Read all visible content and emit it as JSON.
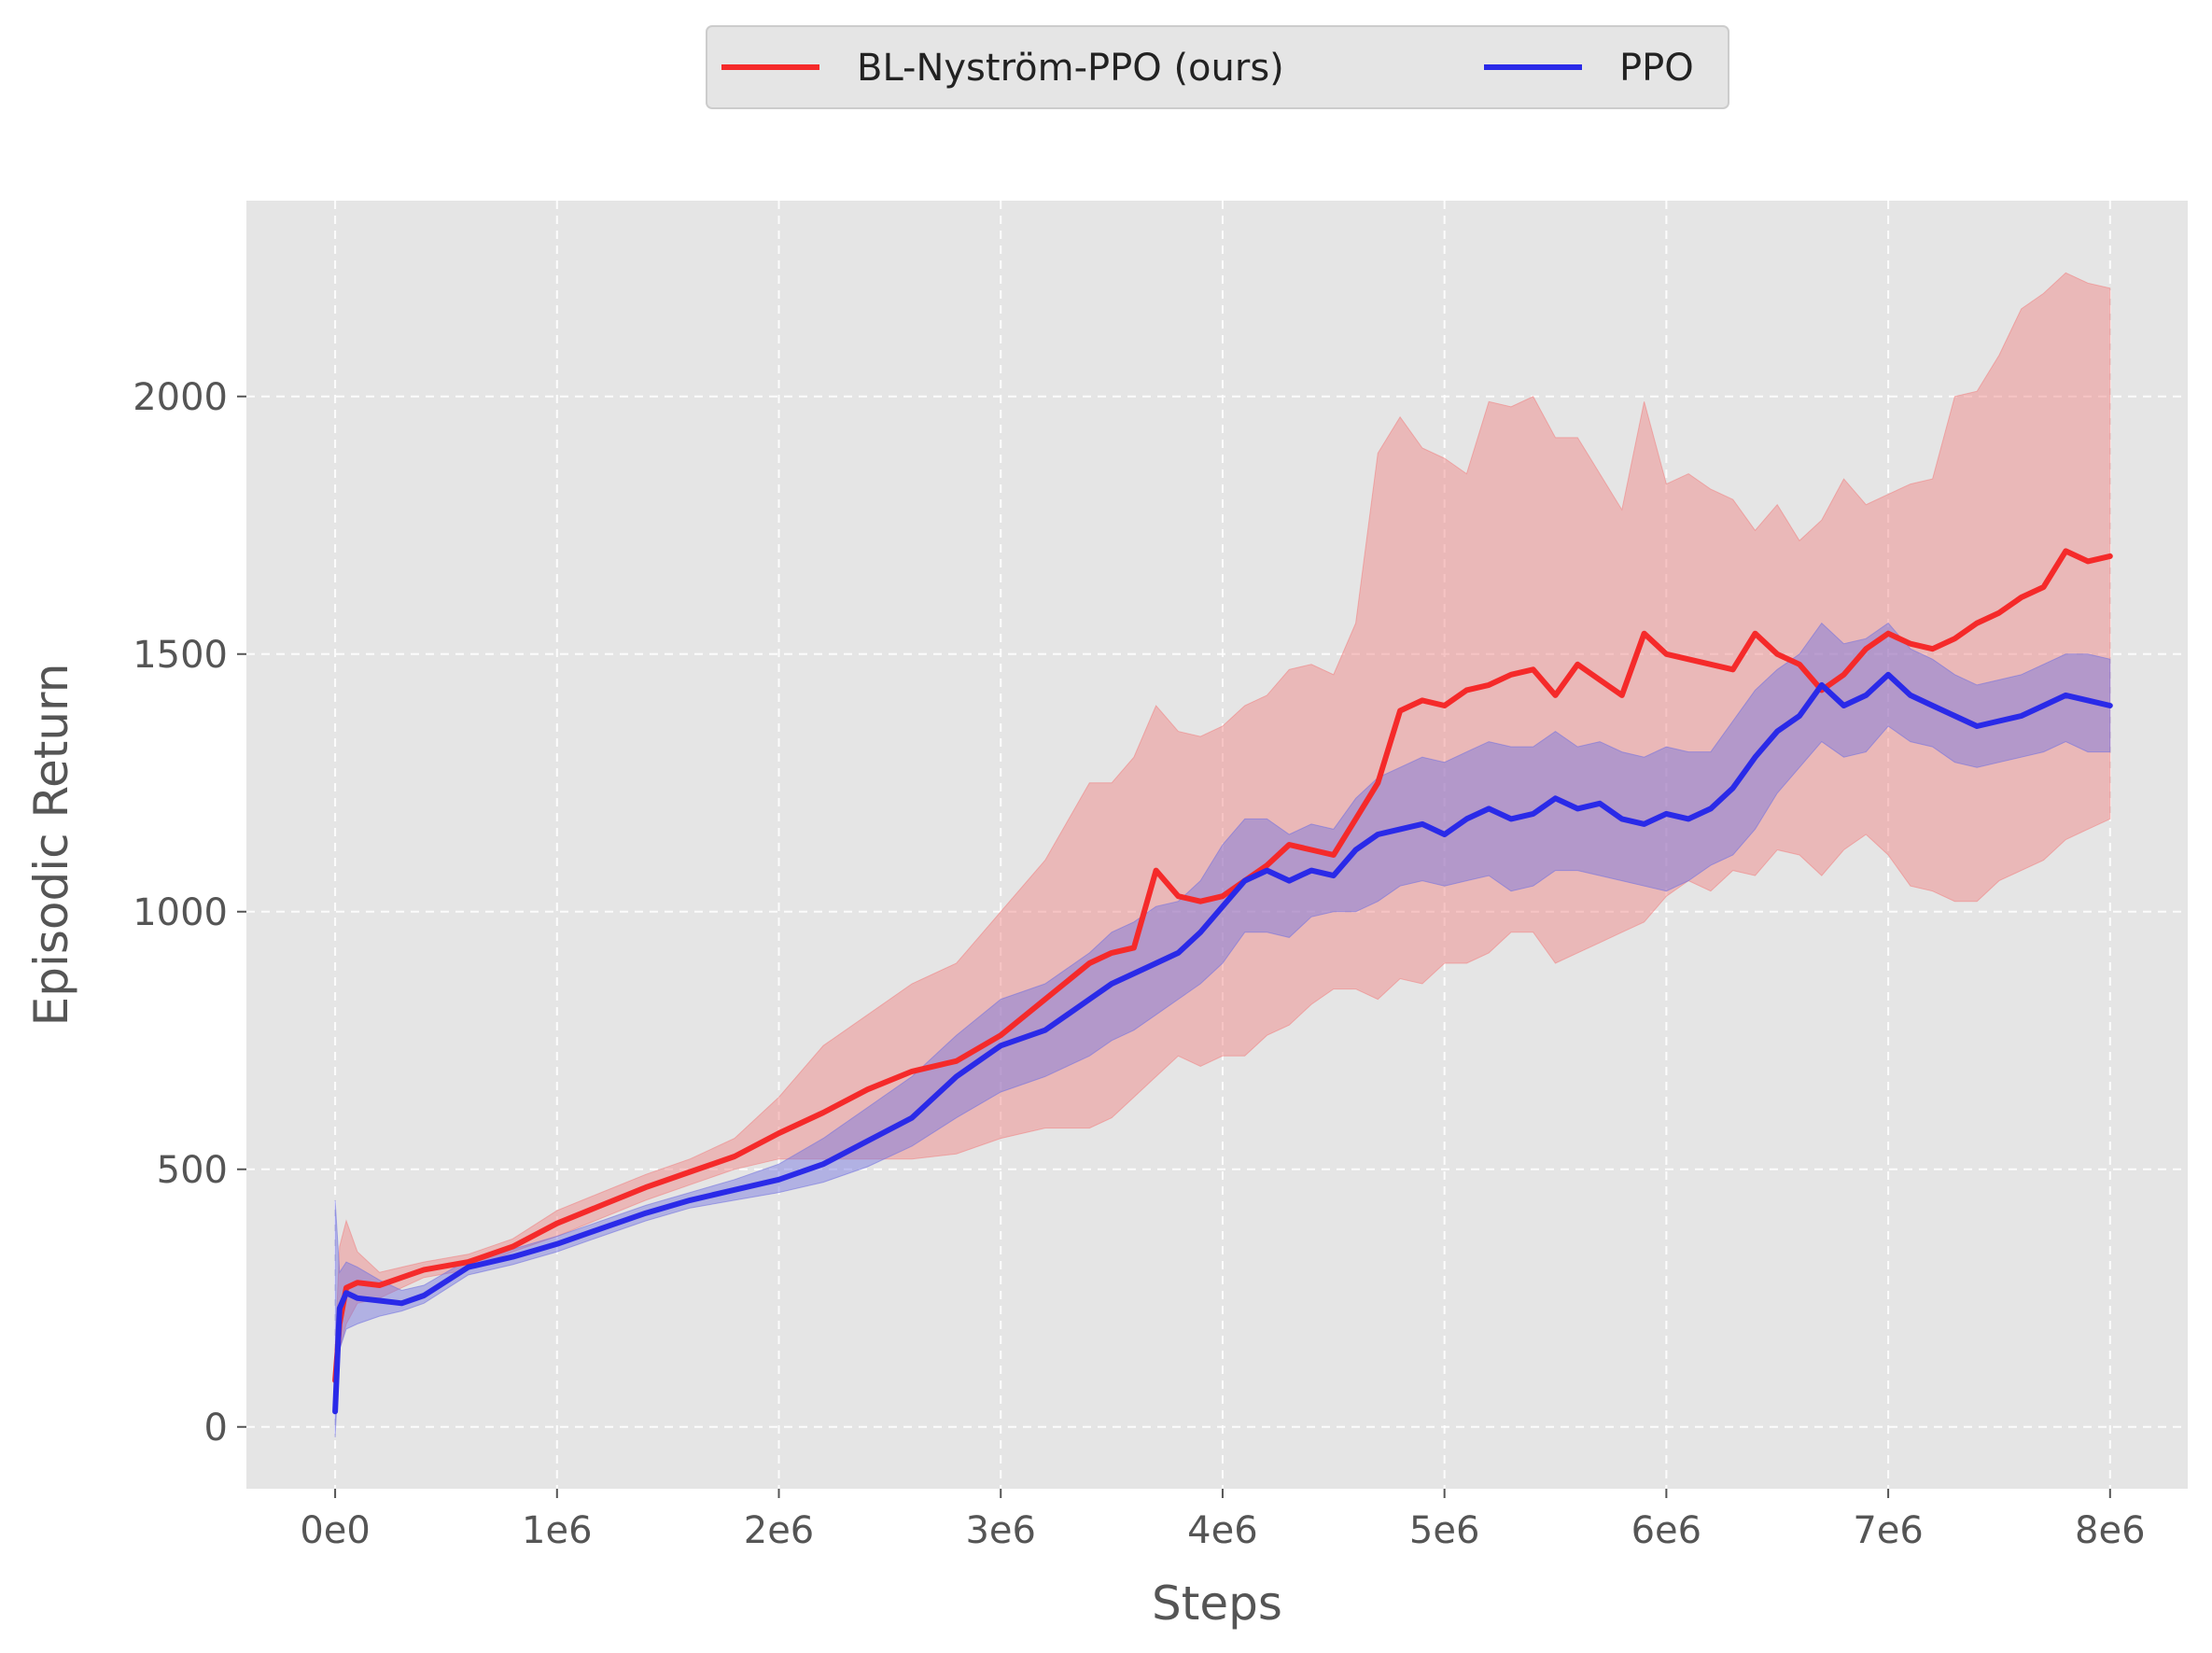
{
  "chart_data": {
    "type": "line",
    "xlabel": "Steps",
    "ylabel": "Episodic Return",
    "xlim": [
      -400000,
      8350000
    ],
    "ylim": [
      -120,
      2380
    ],
    "x_ticks": [
      {
        "value": 0,
        "label": "0e0"
      },
      {
        "value": 1000000,
        "label": "1e6"
      },
      {
        "value": 2000000,
        "label": "2e6"
      },
      {
        "value": 3000000,
        "label": "3e6"
      },
      {
        "value": 4000000,
        "label": "4e6"
      },
      {
        "value": 5000000,
        "label": "5e6"
      },
      {
        "value": 6000000,
        "label": "6e6"
      },
      {
        "value": 7000000,
        "label": "7e6"
      },
      {
        "value": 8000000,
        "label": "8e6"
      }
    ],
    "y_ticks": [
      {
        "value": 0,
        "label": "0"
      },
      {
        "value": 500,
        "label": "500"
      },
      {
        "value": 1000,
        "label": "1000"
      },
      {
        "value": 1500,
        "label": "1500"
      },
      {
        "value": 2000,
        "label": "2000"
      }
    ],
    "grid": true,
    "legend_position": "top-center",
    "background": "#e5e5e5",
    "series": [
      {
        "name": "BL-Nyström-PPO (ours)",
        "color": "#f52a2a",
        "band_color": "#f08080",
        "x": [
          0,
          20000,
          50000,
          100000,
          200000,
          300000,
          400000,
          600000,
          800000,
          1000000,
          1200000,
          1400000,
          1600000,
          1800000,
          2000000,
          2200000,
          2400000,
          2600000,
          2800000,
          3000000,
          3200000,
          3400000,
          3500000,
          3600000,
          3700000,
          3800000,
          3900000,
          4000000,
          4100000,
          4200000,
          4300000,
          4400000,
          4500000,
          4600000,
          4700000,
          4800000,
          4900000,
          5000000,
          5100000,
          5200000,
          5300000,
          5400000,
          5500000,
          5600000,
          5700000,
          5800000,
          5900000,
          6000000,
          6100000,
          6200000,
          6300000,
          6400000,
          6500000,
          6600000,
          6700000,
          6800000,
          6900000,
          7000000,
          7100000,
          7200000,
          7300000,
          7400000,
          7500000,
          7600000,
          7700000,
          7800000,
          7900000,
          8000000
        ],
        "y": [
          90,
          200,
          270,
          280,
          275,
          290,
          305,
          320,
          350,
          395,
          430,
          465,
          495,
          525,
          570,
          610,
          655,
          690,
          710,
          760,
          830,
          900,
          920,
          930,
          1080,
          1030,
          1020,
          1030,
          1060,
          1090,
          1130,
          1120,
          1110,
          1180,
          1250,
          1390,
          1410,
          1400,
          1430,
          1440,
          1460,
          1470,
          1420,
          1480,
          1450,
          1420,
          1540,
          1500,
          1490,
          1480,
          1470,
          1540,
          1500,
          1480,
          1430,
          1460,
          1510,
          1540,
          1520,
          1510,
          1530,
          1560,
          1580,
          1610,
          1630,
          1700,
          1680,
          1690
        ],
        "lower": [
          70,
          150,
          200,
          240,
          250,
          270,
          290,
          305,
          340,
          370,
          405,
          440,
          470,
          500,
          520,
          520,
          520,
          520,
          530,
          560,
          580,
          580,
          600,
          640,
          680,
          720,
          700,
          720,
          720,
          760,
          780,
          820,
          850,
          850,
          830,
          870,
          860,
          900,
          900,
          920,
          960,
          960,
          900,
          920,
          940,
          960,
          980,
          1030,
          1060,
          1040,
          1080,
          1070,
          1120,
          1110,
          1070,
          1120,
          1150,
          1110,
          1050,
          1040,
          1020,
          1020,
          1060,
          1080,
          1100,
          1140,
          1160,
          1180
        ],
        "upper": [
          150,
          350,
          400,
          340,
          300,
          310,
          320,
          335,
          365,
          420,
          455,
          490,
          520,
          560,
          640,
          740,
          800,
          860,
          900,
          1000,
          1100,
          1250,
          1250,
          1300,
          1400,
          1350,
          1340,
          1360,
          1400,
          1420,
          1470,
          1480,
          1460,
          1560,
          1890,
          1960,
          1900,
          1880,
          1850,
          1990,
          1980,
          2000,
          1920,
          1920,
          1850,
          1780,
          1990,
          1830,
          1850,
          1820,
          1800,
          1740,
          1790,
          1720,
          1760,
          1840,
          1790,
          1810,
          1830,
          1840,
          2000,
          2010,
          2080,
          2170,
          2200,
          2240,
          2220,
          2210
        ]
      },
      {
        "name": "PPO",
        "color": "#2a2ae8",
        "band_color": "#7070e0",
        "x": [
          0,
          20000,
          50000,
          100000,
          200000,
          300000,
          400000,
          600000,
          800000,
          1000000,
          1200000,
          1400000,
          1600000,
          1800000,
          2000000,
          2200000,
          2400000,
          2600000,
          2800000,
          3000000,
          3200000,
          3400000,
          3500000,
          3600000,
          3700000,
          3800000,
          3900000,
          4000000,
          4100000,
          4200000,
          4300000,
          4400000,
          4500000,
          4600000,
          4700000,
          4800000,
          4900000,
          5000000,
          5100000,
          5200000,
          5300000,
          5400000,
          5500000,
          5600000,
          5700000,
          5800000,
          5900000,
          6000000,
          6100000,
          6200000,
          6300000,
          6400000,
          6500000,
          6600000,
          6700000,
          6800000,
          6900000,
          7000000,
          7100000,
          7200000,
          7300000,
          7400000,
          7500000,
          7600000,
          7700000,
          7800000,
          7900000,
          8000000
        ],
        "y": [
          30,
          230,
          260,
          250,
          245,
          240,
          255,
          310,
          330,
          355,
          385,
          415,
          440,
          460,
          480,
          510,
          555,
          600,
          680,
          740,
          770,
          830,
          860,
          880,
          900,
          920,
          960,
          1010,
          1060,
          1080,
          1060,
          1080,
          1070,
          1120,
          1150,
          1160,
          1170,
          1150,
          1180,
          1200,
          1180,
          1190,
          1220,
          1200,
          1210,
          1180,
          1170,
          1190,
          1180,
          1200,
          1240,
          1300,
          1350,
          1380,
          1440,
          1400,
          1420,
          1460,
          1420,
          1400,
          1380,
          1360,
          1370,
          1380,
          1400,
          1420,
          1410,
          1400
        ],
        "lower": [
          -20,
          150,
          190,
          200,
          215,
          225,
          240,
          295,
          315,
          340,
          370,
          400,
          425,
          440,
          455,
          475,
          505,
          545,
          600,
          650,
          680,
          720,
          750,
          770,
          800,
          830,
          860,
          900,
          960,
          960,
          950,
          990,
          1000,
          1000,
          1020,
          1050,
          1060,
          1050,
          1060,
          1070,
          1040,
          1050,
          1080,
          1080,
          1070,
          1060,
          1050,
          1040,
          1060,
          1090,
          1110,
          1160,
          1230,
          1280,
          1330,
          1300,
          1310,
          1360,
          1330,
          1320,
          1290,
          1280,
          1290,
          1300,
          1310,
          1330,
          1310,
          1310
        ],
        "upper": [
          440,
          300,
          320,
          310,
          285,
          265,
          275,
          325,
          345,
          370,
          400,
          430,
          455,
          480,
          510,
          560,
          620,
          680,
          760,
          830,
          860,
          920,
          960,
          980,
          1010,
          1020,
          1060,
          1130,
          1180,
          1180,
          1150,
          1170,
          1160,
          1220,
          1260,
          1280,
          1300,
          1290,
          1310,
          1330,
          1320,
          1320,
          1350,
          1320,
          1330,
          1310,
          1300,
          1320,
          1310,
          1310,
          1370,
          1430,
          1470,
          1500,
          1560,
          1520,
          1530,
          1560,
          1510,
          1490,
          1460,
          1440,
          1450,
          1460,
          1480,
          1500,
          1500,
          1490
        ]
      }
    ]
  }
}
